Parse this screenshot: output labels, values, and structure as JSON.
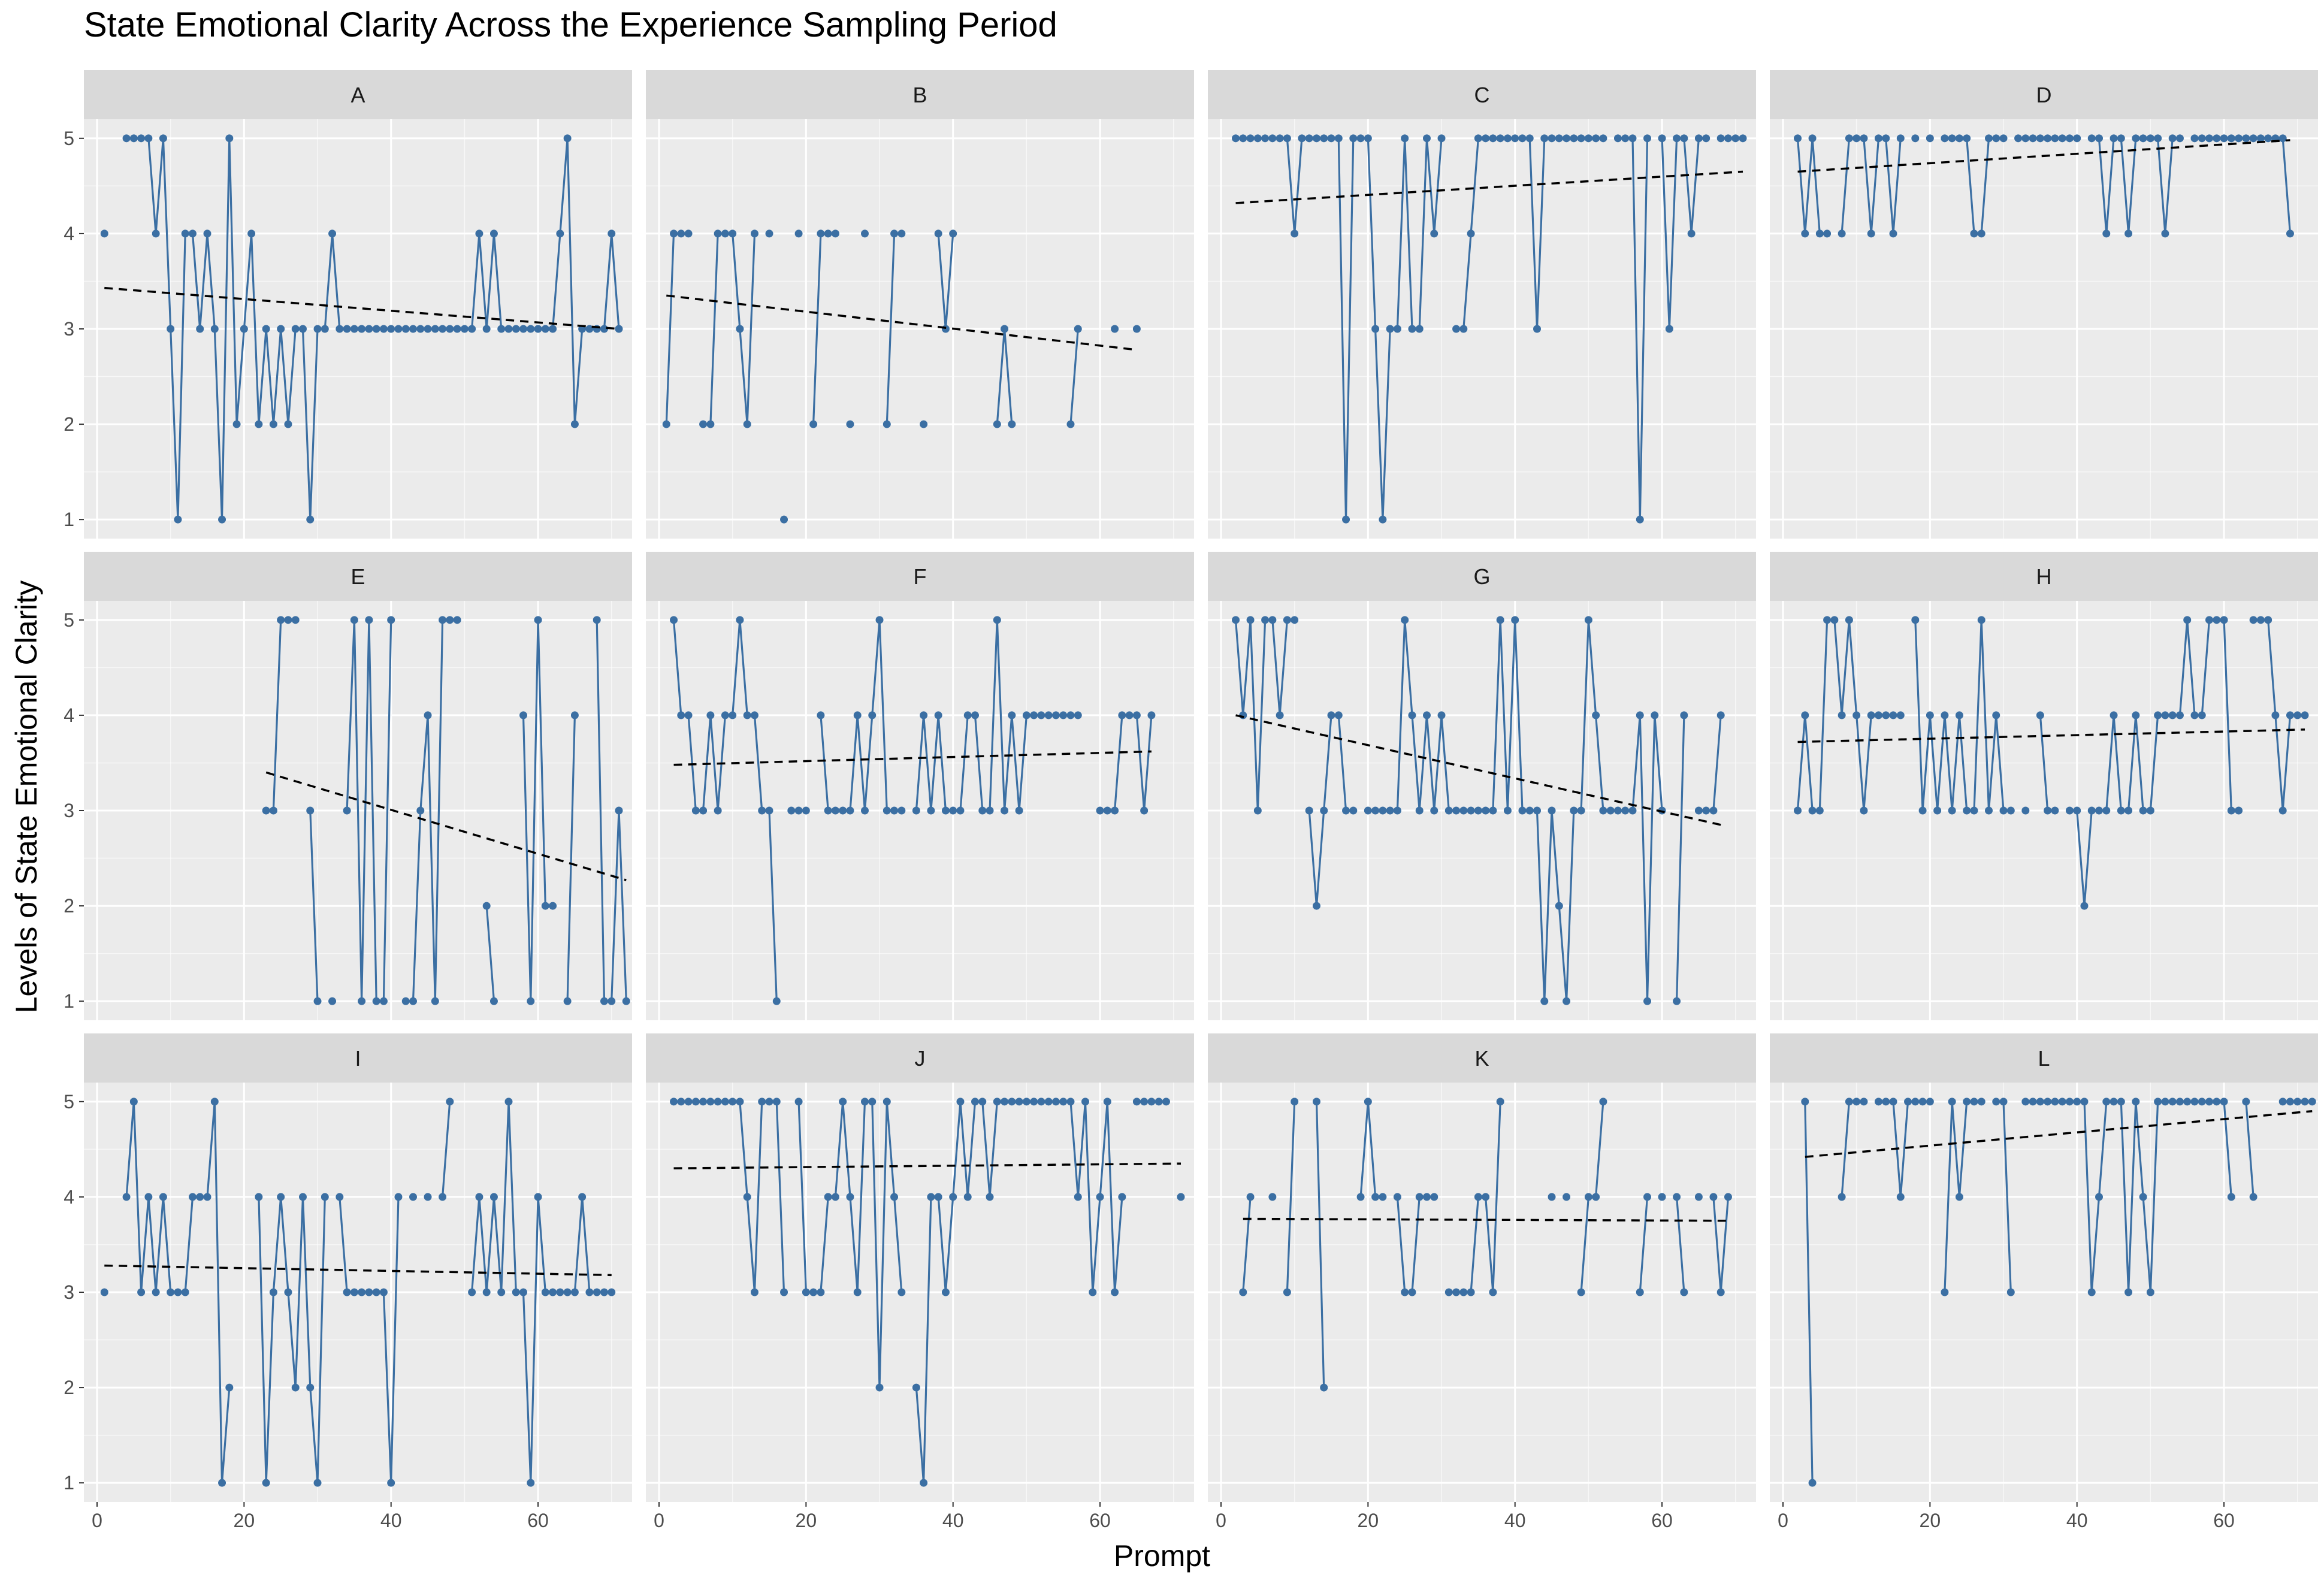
{
  "chart_data": {
    "type": "line",
    "title": "State Emotional Clarity Across the Experience Sampling Period",
    "xlabel": "Prompt",
    "ylabel": "Levels of State Emotional Clarity",
    "xlim": [
      0,
      71
    ],
    "ylim": [
      0.8,
      5.2
    ],
    "xticks": [
      0,
      20,
      40,
      60
    ],
    "yticks": [
      1,
      2,
      3,
      4,
      5
    ],
    "colors": {
      "series": "#3B6FA3",
      "trend": "#000000",
      "panel": "#EBEBEB",
      "strip": "#D9D9D9",
      "grid": "#FFFFFF"
    },
    "panels": [
      {
        "label": "A",
        "y": [
          4,
          null,
          null,
          5,
          5,
          5,
          5,
          4,
          5,
          3,
          1,
          4,
          4,
          3,
          4,
          3,
          1,
          5,
          2,
          3,
          4,
          2,
          3,
          2,
          3,
          2,
          3,
          3,
          1,
          3,
          3,
          4,
          3,
          3,
          3,
          3,
          3,
          3,
          3,
          3,
          3,
          3,
          3,
          3,
          3,
          3,
          3,
          3,
          3,
          3,
          3,
          4,
          3,
          4,
          3,
          3,
          3,
          3,
          3,
          3,
          3,
          3,
          4,
          5,
          2,
          3,
          3,
          3,
          3,
          4,
          3
        ],
        "trend": [
          3.43,
          3.0
        ]
      },
      {
        "label": "B",
        "y": [
          2,
          4,
          4,
          4,
          null,
          2,
          2,
          4,
          4,
          4,
          3,
          2,
          4,
          null,
          4,
          null,
          1,
          null,
          4,
          null,
          2,
          4,
          4,
          4,
          null,
          2,
          null,
          4,
          null,
          null,
          2,
          4,
          4,
          null,
          null,
          2,
          null,
          4,
          3,
          4,
          null,
          null,
          null,
          null,
          null,
          2,
          3,
          2,
          null,
          null,
          null,
          null,
          null,
          null,
          null,
          2,
          3,
          null,
          null,
          null,
          null,
          3,
          null,
          null,
          3
        ],
        "trend": [
          3.35,
          2.78
        ]
      },
      {
        "label": "C",
        "y": [
          null,
          5,
          5,
          5,
          5,
          5,
          5,
          5,
          5,
          4,
          5,
          5,
          5,
          5,
          5,
          5,
          1,
          5,
          5,
          5,
          3,
          1,
          3,
          3,
          5,
          3,
          3,
          5,
          4,
          5,
          null,
          3,
          3,
          4,
          5,
          5,
          5,
          5,
          5,
          5,
          5,
          5,
          3,
          5,
          5,
          5,
          5,
          5,
          5,
          5,
          5,
          5,
          null,
          5,
          5,
          5,
          1,
          5,
          null,
          5,
          3,
          5,
          5,
          4,
          5,
          5,
          null,
          5,
          5,
          5,
          5
        ],
        "trend": [
          4.32,
          4.65
        ]
      },
      {
        "label": "D",
        "y": [
          null,
          5,
          4,
          5,
          4,
          4,
          null,
          4,
          5,
          5,
          5,
          4,
          5,
          5,
          4,
          5,
          null,
          5,
          null,
          5,
          null,
          5,
          5,
          5,
          5,
          4,
          4,
          5,
          5,
          5,
          null,
          5,
          5,
          5,
          5,
          5,
          5,
          5,
          5,
          5,
          null,
          5,
          5,
          4,
          5,
          5,
          4,
          5,
          5,
          5,
          5,
          4,
          5,
          5,
          null,
          5,
          5,
          5,
          5,
          5,
          5,
          5,
          5,
          5,
          5,
          5,
          5,
          5,
          4
        ],
        "trend": [
          4.65,
          4.98
        ]
      },
      {
        "label": "E",
        "y": [
          null,
          null,
          null,
          null,
          null,
          null,
          null,
          null,
          null,
          null,
          null,
          null,
          null,
          null,
          null,
          null,
          null,
          null,
          null,
          null,
          null,
          null,
          3,
          3,
          5,
          5,
          5,
          null,
          3,
          1,
          null,
          1,
          null,
          3,
          5,
          1,
          5,
          1,
          1,
          5,
          null,
          1,
          1,
          3,
          4,
          1,
          5,
          5,
          5,
          null,
          null,
          null,
          2,
          1,
          null,
          null,
          null,
          4,
          1,
          5,
          2,
          2,
          null,
          1,
          4,
          null,
          null,
          5,
          1,
          1,
          3,
          1
        ],
        "trend": [
          3.4,
          2.27
        ]
      },
      {
        "label": "F",
        "y": [
          null,
          5,
          4,
          4,
          3,
          3,
          4,
          3,
          4,
          4,
          5,
          4,
          4,
          3,
          3,
          1,
          null,
          3,
          3,
          3,
          null,
          4,
          3,
          3,
          3,
          3,
          4,
          3,
          4,
          5,
          3,
          3,
          3,
          null,
          3,
          4,
          3,
          4,
          3,
          3,
          3,
          4,
          4,
          3,
          3,
          5,
          3,
          4,
          3,
          4,
          4,
          4,
          4,
          4,
          4,
          4,
          4,
          null,
          null,
          3,
          3,
          3,
          4,
          4,
          4,
          3,
          4
        ],
        "trend": [
          3.48,
          3.62
        ]
      },
      {
        "label": "G",
        "y": [
          null,
          5,
          4,
          5,
          3,
          5,
          5,
          4,
          5,
          5,
          null,
          3,
          2,
          3,
          4,
          4,
          3,
          3,
          null,
          3,
          3,
          3,
          3,
          3,
          5,
          4,
          3,
          4,
          3,
          4,
          3,
          3,
          3,
          3,
          3,
          3,
          3,
          5,
          3,
          5,
          3,
          3,
          3,
          1,
          3,
          2,
          1,
          3,
          3,
          5,
          4,
          3,
          3,
          3,
          3,
          3,
          4,
          1,
          4,
          3,
          null,
          1,
          4,
          null,
          3,
          3,
          3,
          4
        ],
        "trend": [
          4.0,
          2.85
        ]
      },
      {
        "label": "H",
        "y": [
          null,
          3,
          4,
          3,
          3,
          5,
          5,
          4,
          5,
          4,
          3,
          4,
          4,
          4,
          4,
          4,
          null,
          5,
          3,
          4,
          3,
          4,
          3,
          4,
          3,
          3,
          5,
          3,
          4,
          3,
          3,
          null,
          3,
          null,
          4,
          3,
          3,
          null,
          3,
          3,
          2,
          3,
          3,
          3,
          4,
          3,
          3,
          4,
          3,
          3,
          4,
          4,
          4,
          4,
          5,
          4,
          4,
          5,
          5,
          5,
          3,
          3,
          null,
          5,
          5,
          5,
          4,
          3,
          4,
          4,
          4
        ],
        "trend": [
          3.72,
          3.85
        ]
      },
      {
        "label": "I",
        "y": [
          3,
          null,
          null,
          4,
          5,
          3,
          4,
          3,
          4,
          3,
          3,
          3,
          4,
          4,
          4,
          5,
          1,
          2,
          null,
          null,
          null,
          4,
          1,
          3,
          4,
          3,
          2,
          4,
          2,
          1,
          4,
          null,
          4,
          3,
          3,
          3,
          3,
          3,
          3,
          1,
          4,
          null,
          4,
          null,
          4,
          null,
          4,
          5,
          null,
          null,
          3,
          4,
          3,
          4,
          3,
          5,
          3,
          3,
          1,
          4,
          3,
          3,
          3,
          3,
          3,
          4,
          3,
          3,
          3,
          3
        ],
        "trend": [
          3.28,
          3.18
        ]
      },
      {
        "label": "J",
        "y": [
          null,
          5,
          5,
          5,
          5,
          5,
          5,
          5,
          5,
          5,
          5,
          4,
          3,
          5,
          5,
          5,
          3,
          null,
          5,
          3,
          3,
          3,
          4,
          4,
          5,
          4,
          3,
          5,
          5,
          2,
          5,
          4,
          3,
          null,
          2,
          1,
          4,
          4,
          3,
          4,
          5,
          4,
          5,
          5,
          4,
          5,
          5,
          5,
          5,
          5,
          5,
          5,
          5,
          5,
          5,
          5,
          4,
          5,
          3,
          4,
          5,
          3,
          4,
          null,
          5,
          5,
          5,
          5,
          5,
          null,
          4
        ],
        "trend": [
          4.3,
          4.35
        ]
      },
      {
        "label": "K",
        "y": [
          null,
          null,
          3,
          4,
          null,
          null,
          4,
          null,
          3,
          5,
          null,
          null,
          5,
          2,
          null,
          null,
          null,
          null,
          4,
          5,
          4,
          4,
          null,
          4,
          3,
          3,
          4,
          4,
          4,
          null,
          3,
          3,
          3,
          3,
          4,
          4,
          3,
          5,
          null,
          null,
          null,
          null,
          null,
          null,
          4,
          null,
          4,
          null,
          3,
          4,
          4,
          5,
          null,
          null,
          null,
          null,
          3,
          4,
          null,
          4,
          null,
          4,
          3,
          null,
          4,
          null,
          4,
          3,
          4
        ],
        "trend": [
          3.77,
          3.75
        ]
      },
      {
        "label": "L",
        "y": [
          null,
          null,
          5,
          1,
          null,
          null,
          null,
          4,
          5,
          5,
          5,
          null,
          5,
          5,
          5,
          4,
          5,
          5,
          5,
          5,
          null,
          3,
          5,
          4,
          5,
          5,
          5,
          null,
          5,
          5,
          3,
          null,
          5,
          5,
          5,
          5,
          5,
          5,
          5,
          5,
          5,
          3,
          4,
          5,
          5,
          5,
          3,
          5,
          4,
          3,
          5,
          5,
          5,
          5,
          5,
          5,
          5,
          5,
          5,
          5,
          4,
          null,
          5,
          4,
          null,
          null,
          null,
          5,
          5,
          5,
          5,
          5
        ],
        "trend": [
          4.42,
          4.9
        ]
      }
    ]
  }
}
